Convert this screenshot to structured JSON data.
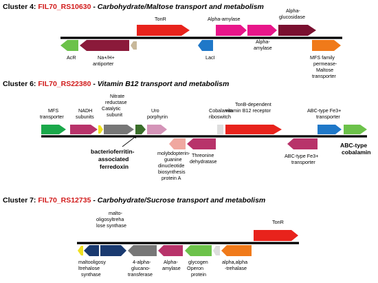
{
  "clusters": [
    {
      "label": "Cluster 4:",
      "id": "FIL70_RS10630",
      "sep": " - ",
      "description": "Carbohydrate/Maltose transport and metabolism",
      "genes": [
        {
          "name": "AcR",
          "color": "#6cc24a",
          "dir": "left"
        },
        {
          "name": "Na+/H+ antiporter",
          "color": "#8b1a3a",
          "dir": "left"
        },
        {
          "name": "",
          "color": "#c8b89a",
          "dir": "left"
        },
        {
          "name": "TonR",
          "color": "#e8231c",
          "dir": "right"
        },
        {
          "name": "Alpha-amylase",
          "color": "#e8168a",
          "dir": "right"
        },
        {
          "name": "Alpha-amylase",
          "color": "#e8168a",
          "dir": "right"
        },
        {
          "name": "Alpha-glucosidase",
          "color": "#7a1030",
          "dir": "right"
        },
        {
          "name": "LacI",
          "color": "#1f78c8",
          "dir": "left"
        },
        {
          "name": "MFS family permease-Maltose transporter",
          "color": "#f07a1a",
          "dir": "right"
        }
      ]
    },
    {
      "label": "Cluster 6:",
      "id": "FIL70_RS22380",
      "sep": " - ",
      "description": "Vitamin B12 transport and metabolism",
      "genes": [
        {
          "name": "MFS transporter",
          "color": "#1aa84a",
          "dir": "right"
        },
        {
          "name": "NADH subunits",
          "color": "#b8336a",
          "dir": "right"
        },
        {
          "name": "",
          "color": "#f0e020",
          "dir": "right"
        },
        {
          "name": "Nitrate reductase Catalytic subunit",
          "color": "#777777",
          "dir": "right"
        },
        {
          "name": "bacterioferritin-associated ferredoxin",
          "color": "#3a6e2a",
          "dir": "right"
        },
        {
          "name": "Uro porphyrin",
          "color": "#d494b8",
          "dir": "right"
        },
        {
          "name": "molybdopterin-guanine dinucleotide biosynthesis protein A",
          "color": "#f0a8a0",
          "dir": "left"
        },
        {
          "name": "Threonine dehydratase",
          "color": "#b8336a",
          "dir": "left"
        },
        {
          "name": "Cobalamin riboswitch",
          "color": "#dddddd",
          "dir": "right"
        },
        {
          "name": "TonB-dependent vitamin B12 receptor",
          "color": "#e8231c",
          "dir": "right"
        },
        {
          "name": "ABC-type Fe3+ transporter",
          "color": "#b8336a",
          "dir": "left"
        },
        {
          "name": "ABC-type Fe3+ transporter",
          "color": "#1f78c8",
          "dir": "right"
        },
        {
          "name": "ABC-type cobalamin",
          "color": "#6cc24a",
          "dir": "right"
        }
      ]
    },
    {
      "label": "Cluster 7:",
      "id": "FIL70_RS12735",
      "sep": " - ",
      "description": "Carbohydrate/Sucrose transport and metabolism",
      "genes": [
        {
          "name": "",
          "color": "#f0e020",
          "dir": "left"
        },
        {
          "name": "maltooligosyltrehalose synthase",
          "color": "#1a3a70",
          "dir": "left"
        },
        {
          "name": "malto-oligosyltrehalose synthase",
          "color": "#1a3a70",
          "dir": "right"
        },
        {
          "name": "4-alpha-glucanotransferase",
          "color": "#777777",
          "dir": "left"
        },
        {
          "name": "Alpha-amylase",
          "color": "#b8336a",
          "dir": "left"
        },
        {
          "name": "glycogen Operon protein",
          "color": "#6cc24a",
          "dir": "left"
        },
        {
          "name": "",
          "color": "#dddddd",
          "dir": "left"
        },
        {
          "name": "alpha,alpha-trehalase",
          "color": "#f07a1a",
          "dir": "left"
        },
        {
          "name": "TonR",
          "color": "#e8231c",
          "dir": "right"
        }
      ]
    }
  ]
}
